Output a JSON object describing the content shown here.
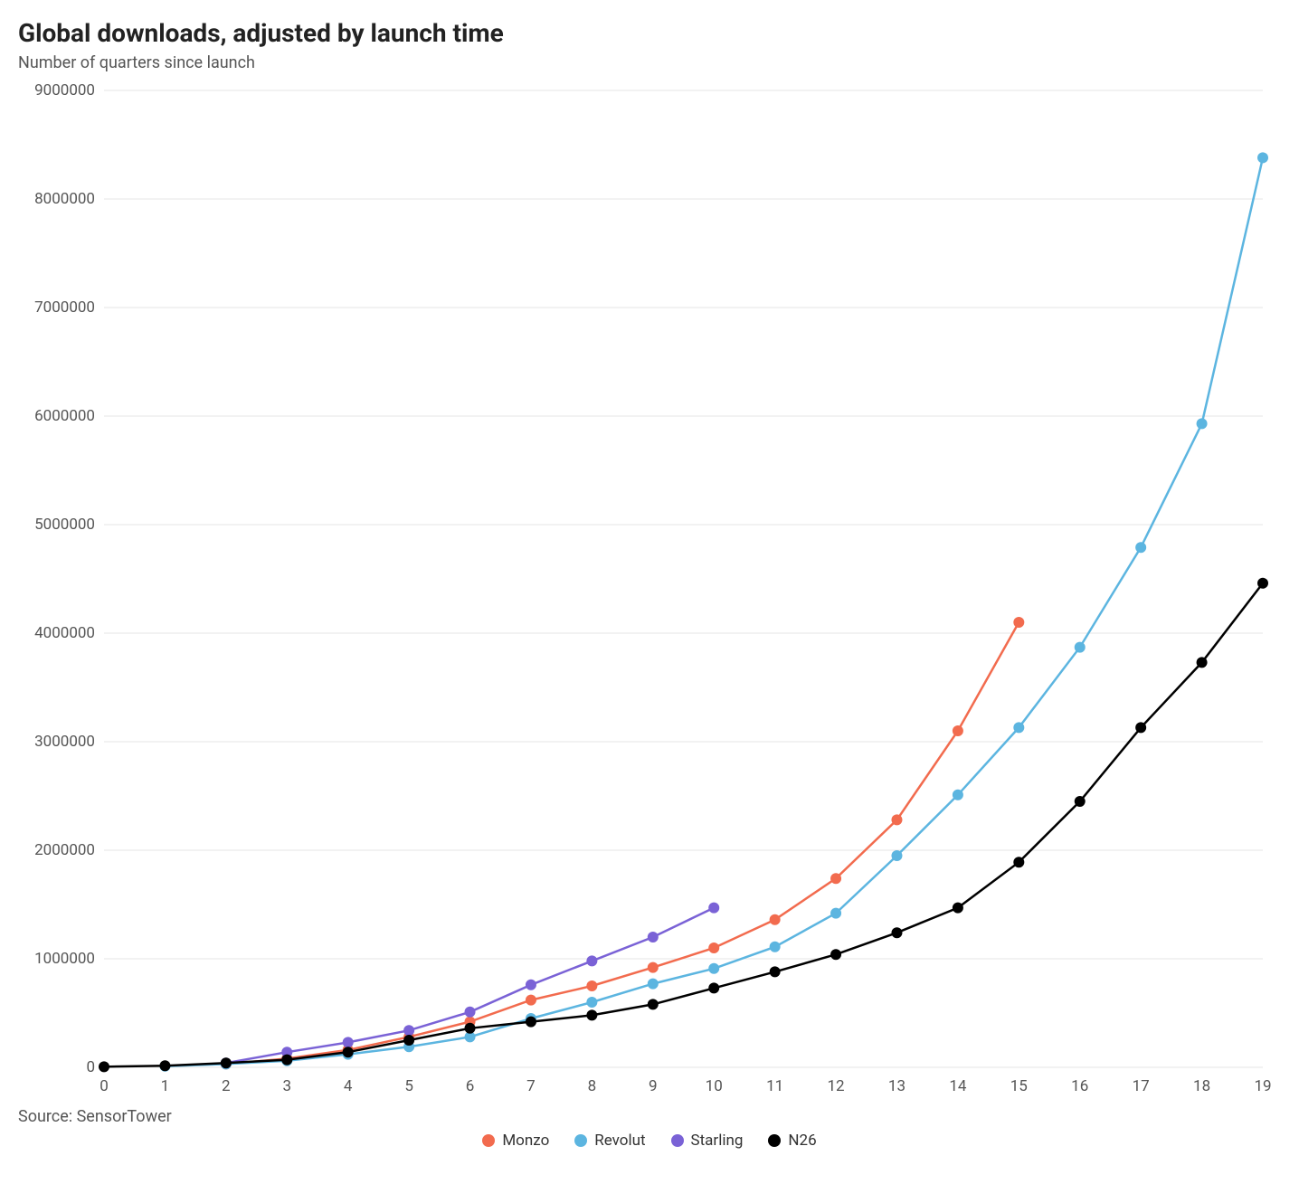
{
  "title": "Global downloads, adjusted by launch time",
  "subtitle": "Number of quarters since launch",
  "source": "Source: SensorTower",
  "chart": {
    "type": "line",
    "background_color": "#ffffff",
    "grid_color": "#e6e6e6",
    "axis_text_color": "#555555",
    "title_fontsize": 28,
    "subtitle_fontsize": 18,
    "axis_fontsize": 17,
    "legend_fontsize": 17,
    "xlim": [
      0,
      19
    ],
    "ylim": [
      0,
      9000000
    ],
    "ytick_step": 1000000,
    "xticks": [
      0,
      1,
      2,
      3,
      4,
      5,
      6,
      7,
      8,
      9,
      10,
      11,
      12,
      13,
      14,
      15,
      16,
      17,
      18,
      19
    ],
    "yticks": [
      0,
      1000000,
      2000000,
      3000000,
      4000000,
      5000000,
      6000000,
      7000000,
      8000000,
      9000000
    ],
    "line_width": 2.5,
    "marker_radius": 6,
    "series": [
      {
        "name": "Monzo",
        "color": "#f26b4e",
        "x": [
          2,
          3,
          4,
          5,
          6,
          7,
          8,
          9,
          10,
          11,
          12,
          13,
          14,
          15
        ],
        "y": [
          30000,
          80000,
          160000,
          280000,
          420000,
          620000,
          750000,
          920000,
          1100000,
          1360000,
          1740000,
          2280000,
          3100000,
          4100000
        ]
      },
      {
        "name": "Revolut",
        "color": "#5cb5e0",
        "x": [
          1,
          2,
          3,
          4,
          5,
          6,
          7,
          8,
          9,
          10,
          11,
          12,
          13,
          14,
          15,
          16,
          17,
          18,
          19
        ],
        "y": [
          10000,
          30000,
          60000,
          120000,
          190000,
          280000,
          450000,
          600000,
          770000,
          910000,
          1110000,
          1420000,
          1950000,
          2510000,
          3130000,
          3870000,
          4790000,
          5930000,
          8380000
        ]
      },
      {
        "name": "Starling",
        "color": "#7a62d6",
        "x": [
          2,
          3,
          4,
          5,
          6,
          7,
          8,
          9,
          10
        ],
        "y": [
          40000,
          140000,
          230000,
          340000,
          510000,
          760000,
          980000,
          1200000,
          1470000
        ]
      },
      {
        "name": "N26",
        "color": "#000000",
        "x": [
          0,
          1,
          2,
          3,
          4,
          5,
          6,
          7,
          8,
          9,
          10,
          11,
          12,
          13,
          14,
          15,
          16,
          17,
          18,
          19
        ],
        "y": [
          5000,
          15000,
          40000,
          70000,
          140000,
          250000,
          360000,
          420000,
          480000,
          580000,
          730000,
          880000,
          1040000,
          1240000,
          1470000,
          1890000,
          2450000,
          3130000,
          3730000,
          4460000
        ]
      }
    ]
  }
}
